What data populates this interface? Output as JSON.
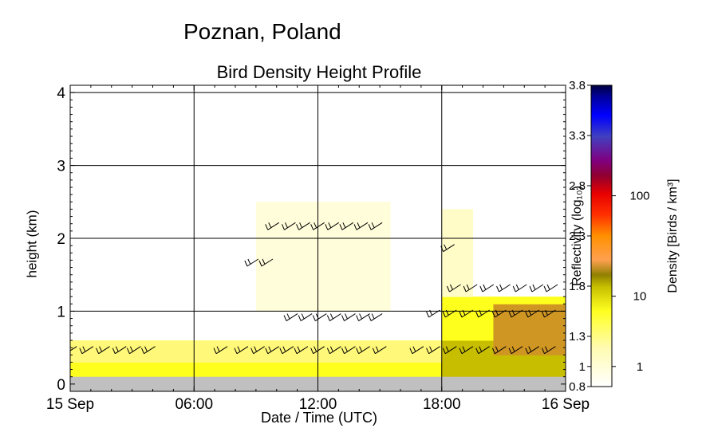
{
  "suptitle": "Poznan, Poland",
  "chart_data": {
    "type": "heatmap",
    "title": "Bird Density Height Profile",
    "xlabel": "Date / Time (UTC)",
    "ylabel": "height (km)",
    "x_ticks": [
      "15 Sep",
      "06:00",
      "12:00",
      "18:00",
      "16 Sep"
    ],
    "y_ticks": [
      "0",
      "1",
      "2",
      "3",
      "4"
    ],
    "xlim_hours": [
      0,
      24
    ],
    "ylim_km": [
      -0.1,
      4.1
    ],
    "grid": true,
    "colorbar": {
      "left_label": "Reflectivity (log₁₀)",
      "right_label": "Density [Birds / km³]",
      "left_ticks": [
        "0.8",
        "1",
        "1.3",
        "1.8",
        "2.3",
        "2.8",
        "3.3",
        "3.8"
      ],
      "right_ticks": [
        "1",
        "10",
        "100"
      ],
      "range": [
        0.8,
        3.8
      ]
    },
    "layers": [
      {
        "name": "ground_clutter",
        "h0": 0.0,
        "h1": 0.1,
        "color": "#c0c0c0"
      },
      {
        "name": "surface_layer",
        "t0": 0.0,
        "t1": 24.0,
        "h0": 0.1,
        "h1": 0.3,
        "value": 1.2
      },
      {
        "name": "low_layer",
        "t0": 0.0,
        "t1": 18.0,
        "h0": 0.3,
        "h1": 0.55,
        "value": 1.05
      },
      {
        "name": "night_low",
        "t0": 18.0,
        "t1": 24.0,
        "h0": 0.1,
        "h1": 0.6,
        "value": 1.35
      },
      {
        "name": "night_mid",
        "t0": 18.0,
        "t1": 24.0,
        "h0": 0.6,
        "h1": 1.2,
        "value": 1.2
      },
      {
        "name": "night_core",
        "t0": 20.5,
        "t1": 24.0,
        "h0": 0.35,
        "h1": 1.1,
        "value": 1.55
      },
      {
        "name": "night_upper",
        "t0": 18.0,
        "t1": 19.5,
        "h0": 1.2,
        "h1": 2.4,
        "value": 0.95
      },
      {
        "name": "midday_aloft",
        "t0": 9.0,
        "t1": 15.5,
        "h0": 1.0,
        "h1": 2.5,
        "value": 0.9
      }
    ],
    "wind_barbs": [
      {
        "t": 0.2,
        "h": 0.45
      },
      {
        "t": 1.0,
        "h": 0.45
      },
      {
        "t": 1.8,
        "h": 0.45
      },
      {
        "t": 2.6,
        "h": 0.45
      },
      {
        "t": 3.3,
        "h": 0.45
      },
      {
        "t": 4.0,
        "h": 0.45
      },
      {
        "t": 7.5,
        "h": 0.45
      },
      {
        "t": 8.5,
        "h": 0.45
      },
      {
        "t": 9.3,
        "h": 0.45
      },
      {
        "t": 10.0,
        "h": 0.45
      },
      {
        "t": 10.7,
        "h": 0.45
      },
      {
        "t": 11.4,
        "h": 0.45
      },
      {
        "t": 12.2,
        "h": 0.45
      },
      {
        "t": 13.0,
        "h": 0.45
      },
      {
        "t": 13.7,
        "h": 0.45
      },
      {
        "t": 14.4,
        "h": 0.45
      },
      {
        "t": 15.2,
        "h": 0.45
      },
      {
        "t": 17.0,
        "h": 0.45
      },
      {
        "t": 17.8,
        "h": 0.45
      },
      {
        "t": 18.6,
        "h": 0.45
      },
      {
        "t": 19.4,
        "h": 0.45
      },
      {
        "t": 20.2,
        "h": 0.45
      },
      {
        "t": 21.0,
        "h": 0.45
      },
      {
        "t": 21.8,
        "h": 0.45
      },
      {
        "t": 22.6,
        "h": 0.45
      },
      {
        "t": 23.4,
        "h": 0.45
      },
      {
        "t": 10.9,
        "h": 0.9
      },
      {
        "t": 11.6,
        "h": 0.9
      },
      {
        "t": 12.3,
        "h": 0.9
      },
      {
        "t": 13.0,
        "h": 0.9
      },
      {
        "t": 13.7,
        "h": 0.9
      },
      {
        "t": 14.4,
        "h": 0.9
      },
      {
        "t": 15.0,
        "h": 0.9
      },
      {
        "t": 17.8,
        "h": 0.95
      },
      {
        "t": 18.6,
        "h": 0.95
      },
      {
        "t": 19.4,
        "h": 0.95
      },
      {
        "t": 20.2,
        "h": 0.95
      },
      {
        "t": 21.0,
        "h": 0.95
      },
      {
        "t": 21.8,
        "h": 0.95
      },
      {
        "t": 22.6,
        "h": 0.95
      },
      {
        "t": 23.4,
        "h": 0.95
      },
      {
        "t": 18.8,
        "h": 1.3
      },
      {
        "t": 19.6,
        "h": 1.3
      },
      {
        "t": 20.4,
        "h": 1.3
      },
      {
        "t": 21.2,
        "h": 1.3
      },
      {
        "t": 22.0,
        "h": 1.3
      },
      {
        "t": 22.8,
        "h": 1.3
      },
      {
        "t": 23.5,
        "h": 1.3
      },
      {
        "t": 9.0,
        "h": 1.65
      },
      {
        "t": 9.7,
        "h": 1.65
      },
      {
        "t": 18.5,
        "h": 1.85
      },
      {
        "t": 10.0,
        "h": 2.15
      },
      {
        "t": 10.8,
        "h": 2.15
      },
      {
        "t": 11.5,
        "h": 2.15
      },
      {
        "t": 12.2,
        "h": 2.15
      },
      {
        "t": 12.9,
        "h": 2.15
      },
      {
        "t": 13.6,
        "h": 2.15
      },
      {
        "t": 14.3,
        "h": 2.15
      },
      {
        "t": 15.0,
        "h": 2.15
      }
    ]
  }
}
